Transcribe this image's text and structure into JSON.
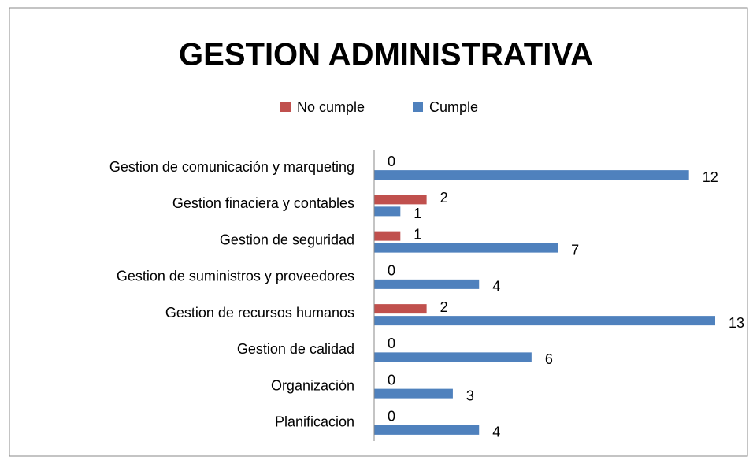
{
  "chart_data": {
    "type": "hbar",
    "title": "GESTION ADMINISTRATIVA",
    "categories": [
      "Gestion de comunicación y marqueting",
      "Gestion finaciera y contables",
      "Gestion de seguridad",
      "Gestion de suministros y proveedores",
      "Gestion de recursos humanos",
      "Gestion de calidad",
      "Organización",
      "Planificacion"
    ],
    "series": [
      {
        "name": "No cumple",
        "color": "#c0504d",
        "values": [
          0,
          2,
          1,
          0,
          2,
          0,
          0,
          0
        ]
      },
      {
        "name": "Cumple",
        "color": "#4f81bd",
        "values": [
          12,
          1,
          7,
          4,
          13,
          6,
          3,
          4
        ]
      }
    ],
    "xlim": [
      0,
      13
    ]
  }
}
